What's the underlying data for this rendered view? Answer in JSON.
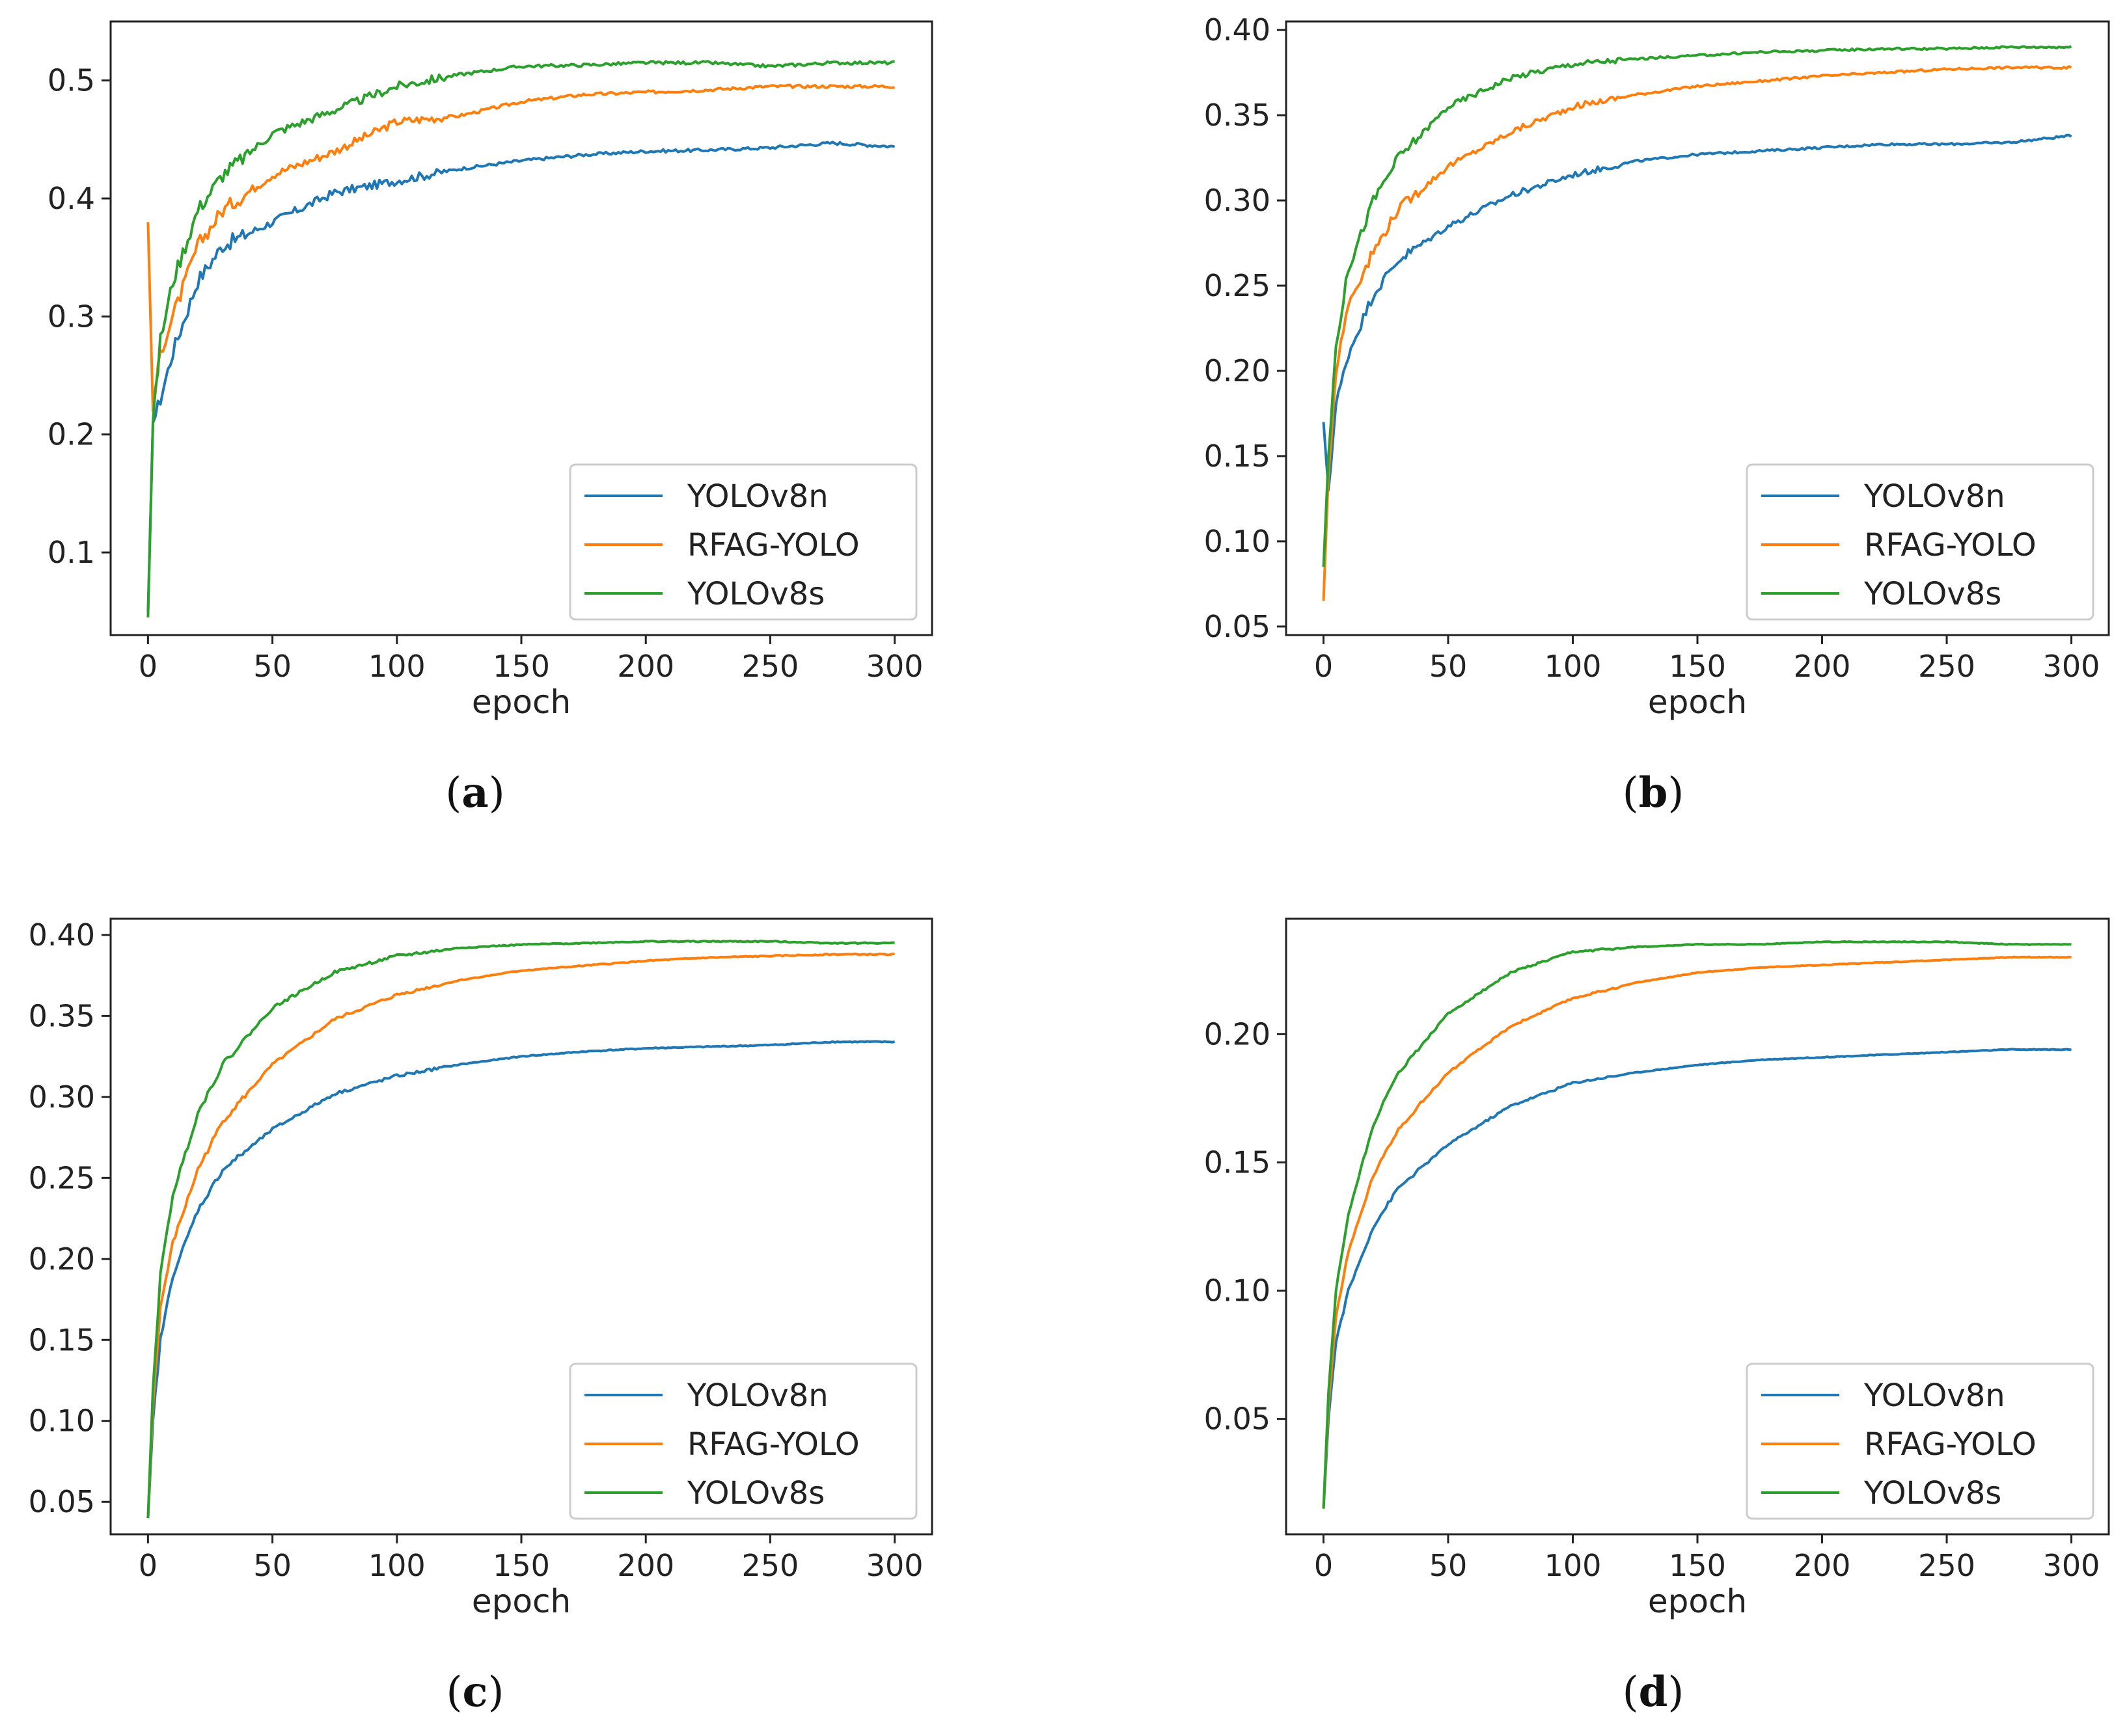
{
  "chart_data": [
    {
      "type": "line",
      "id": "a",
      "caption": "a",
      "xlabel": "epoch",
      "ylabel": "",
      "xlim": [
        -15,
        315
      ],
      "ylim": [
        0.03,
        0.55
      ],
      "xticks": [
        "0",
        "50",
        "100",
        "150",
        "200",
        "250",
        "300"
      ],
      "yticks": [
        "0.1",
        "0.2",
        "0.3",
        "0.4",
        "0.5"
      ],
      "legend": "lower-right",
      "noise": 1.0,
      "series": [
        {
          "name": "YOLOv8n",
          "color": "#1f77b4",
          "start": 0.05,
          "x": [
            0,
            2,
            5,
            10,
            20,
            30,
            50,
            75,
            100,
            125,
            150,
            175,
            200,
            225,
            250,
            275,
            300
          ],
          "y": [
            0.05,
            0.21,
            0.23,
            0.27,
            0.33,
            0.36,
            0.38,
            0.405,
            0.415,
            0.425,
            0.432,
            0.437,
            0.44,
            0.441,
            0.443,
            0.447,
            0.444
          ]
        },
        {
          "name": "RFAG-YOLO",
          "color": "#ff7f0e",
          "start": 0.38,
          "x": [
            0,
            2,
            5,
            10,
            20,
            30,
            50,
            75,
            100,
            125,
            150,
            175,
            200,
            225,
            250,
            275,
            300
          ],
          "y": [
            0.38,
            0.22,
            0.27,
            0.3,
            0.36,
            0.39,
            0.42,
            0.44,
            0.465,
            0.47,
            0.482,
            0.488,
            0.49,
            0.492,
            0.495,
            0.495,
            0.495
          ]
        },
        {
          "name": "YOLOv8s",
          "color": "#2ca02c",
          "start": 0.045,
          "x": [
            0,
            2,
            5,
            10,
            20,
            30,
            50,
            75,
            100,
            125,
            150,
            175,
            200,
            225,
            250,
            275,
            300
          ],
          "y": [
            0.045,
            0.21,
            0.28,
            0.33,
            0.39,
            0.42,
            0.455,
            0.475,
            0.495,
            0.505,
            0.512,
            0.513,
            0.515,
            0.515,
            0.512,
            0.515,
            0.515
          ]
        }
      ]
    },
    {
      "type": "line",
      "id": "b",
      "caption": "b",
      "xlabel": "epoch",
      "ylabel": "",
      "xlim": [
        -15,
        315
      ],
      "ylim": [
        0.045,
        0.405
      ],
      "xticks": [
        "0",
        "50",
        "100",
        "150",
        "200",
        "250",
        "300"
      ],
      "yticks": [
        "0.05",
        "0.10",
        "0.15",
        "0.20",
        "0.25",
        "0.30",
        "0.35",
        "0.40"
      ],
      "legend": "lower-right",
      "noise": 0.7,
      "series": [
        {
          "name": "YOLOv8n",
          "color": "#1f77b4",
          "start": 0.17,
          "x": [
            0,
            2,
            5,
            10,
            20,
            30,
            50,
            75,
            100,
            125,
            150,
            175,
            200,
            225,
            250,
            275,
            300
          ],
          "y": [
            0.17,
            0.13,
            0.18,
            0.21,
            0.245,
            0.265,
            0.285,
            0.303,
            0.315,
            0.323,
            0.327,
            0.329,
            0.331,
            0.333,
            0.333,
            0.334,
            0.338
          ]
        },
        {
          "name": "RFAG-YOLO",
          "color": "#ff7f0e",
          "start": 0.065,
          "x": [
            0,
            2,
            5,
            10,
            20,
            30,
            50,
            75,
            100,
            125,
            150,
            175,
            200,
            225,
            250,
            275,
            300
          ],
          "y": [
            0.065,
            0.14,
            0.2,
            0.24,
            0.27,
            0.295,
            0.32,
            0.34,
            0.355,
            0.362,
            0.367,
            0.37,
            0.373,
            0.375,
            0.377,
            0.378,
            0.378
          ]
        },
        {
          "name": "YOLOv8s",
          "color": "#2ca02c",
          "start": 0.085,
          "x": [
            0,
            2,
            5,
            10,
            20,
            30,
            50,
            75,
            100,
            125,
            150,
            175,
            200,
            225,
            250,
            275,
            300
          ],
          "y": [
            0.085,
            0.15,
            0.215,
            0.26,
            0.3,
            0.325,
            0.355,
            0.372,
            0.38,
            0.383,
            0.385,
            0.387,
            0.388,
            0.389,
            0.389,
            0.39,
            0.39
          ]
        }
      ]
    },
    {
      "type": "line",
      "id": "c",
      "caption": "c",
      "xlabel": "epoch",
      "ylabel": "",
      "xlim": [
        -15,
        315
      ],
      "ylim": [
        0.03,
        0.41
      ],
      "xticks": [
        "0",
        "50",
        "100",
        "150",
        "200",
        "250",
        "300"
      ],
      "yticks": [
        "0.05",
        "0.10",
        "0.15",
        "0.20",
        "0.25",
        "0.30",
        "0.35",
        "0.40"
      ],
      "legend": "lower-right",
      "noise": 0.35,
      "series": [
        {
          "name": "YOLOv8n",
          "color": "#1f77b4",
          "start": 0.04,
          "x": [
            0,
            2,
            5,
            10,
            20,
            30,
            50,
            75,
            100,
            125,
            150,
            175,
            200,
            225,
            250,
            275,
            300
          ],
          "y": [
            0.04,
            0.1,
            0.15,
            0.19,
            0.23,
            0.255,
            0.28,
            0.302,
            0.313,
            0.32,
            0.325,
            0.328,
            0.33,
            0.331,
            0.332,
            0.334,
            0.334
          ]
        },
        {
          "name": "RFAG-YOLO",
          "color": "#ff7f0e",
          "start": 0.04,
          "x": [
            0,
            2,
            5,
            10,
            20,
            30,
            50,
            75,
            100,
            125,
            150,
            175,
            200,
            225,
            250,
            275,
            300
          ],
          "y": [
            0.04,
            0.11,
            0.17,
            0.21,
            0.255,
            0.285,
            0.32,
            0.348,
            0.363,
            0.372,
            0.378,
            0.381,
            0.384,
            0.386,
            0.387,
            0.388,
            0.388
          ]
        },
        {
          "name": "YOLOv8s",
          "color": "#2ca02c",
          "start": 0.04,
          "x": [
            0,
            2,
            5,
            10,
            20,
            30,
            50,
            75,
            100,
            125,
            150,
            175,
            200,
            225,
            250,
            275,
            300
          ],
          "y": [
            0.04,
            0.12,
            0.19,
            0.24,
            0.29,
            0.32,
            0.355,
            0.377,
            0.387,
            0.392,
            0.394,
            0.395,
            0.396,
            0.396,
            0.396,
            0.395,
            0.395
          ]
        }
      ]
    },
    {
      "type": "line",
      "id": "d",
      "caption": "d",
      "xlabel": "epoch",
      "ylabel": "",
      "xlim": [
        -15,
        315
      ],
      "ylim": [
        0.005,
        0.245
      ],
      "xticks": [
        "0",
        "50",
        "100",
        "150",
        "200",
        "250",
        "300"
      ],
      "yticks": [
        "0.05",
        "0.10",
        "0.15",
        "0.20"
      ],
      "legend": "lower-right",
      "noise": 0.25,
      "series": [
        {
          "name": "YOLOv8n",
          "color": "#1f77b4",
          "start": 0.015,
          "x": [
            0,
            2,
            5,
            10,
            20,
            30,
            50,
            75,
            100,
            125,
            150,
            175,
            200,
            225,
            250,
            275,
            300
          ],
          "y": [
            0.015,
            0.05,
            0.08,
            0.1,
            0.125,
            0.14,
            0.157,
            0.172,
            0.181,
            0.185,
            0.188,
            0.19,
            0.191,
            0.192,
            0.193,
            0.194,
            0.194
          ]
        },
        {
          "name": "RFAG-YOLO",
          "color": "#ff7f0e",
          "start": 0.015,
          "x": [
            0,
            2,
            5,
            10,
            20,
            30,
            50,
            75,
            100,
            125,
            150,
            175,
            200,
            225,
            250,
            275,
            300
          ],
          "y": [
            0.015,
            0.055,
            0.09,
            0.115,
            0.145,
            0.163,
            0.185,
            0.203,
            0.214,
            0.22,
            0.224,
            0.226,
            0.227,
            0.228,
            0.229,
            0.23,
            0.23
          ]
        },
        {
          "name": "YOLOv8s",
          "color": "#2ca02c",
          "start": 0.015,
          "x": [
            0,
            2,
            5,
            10,
            20,
            30,
            50,
            75,
            100,
            125,
            150,
            175,
            200,
            225,
            250,
            275,
            300
          ],
          "y": [
            0.015,
            0.06,
            0.1,
            0.13,
            0.165,
            0.185,
            0.208,
            0.224,
            0.232,
            0.234,
            0.235,
            0.235,
            0.236,
            0.236,
            0.236,
            0.235,
            0.235
          ]
        }
      ]
    }
  ]
}
